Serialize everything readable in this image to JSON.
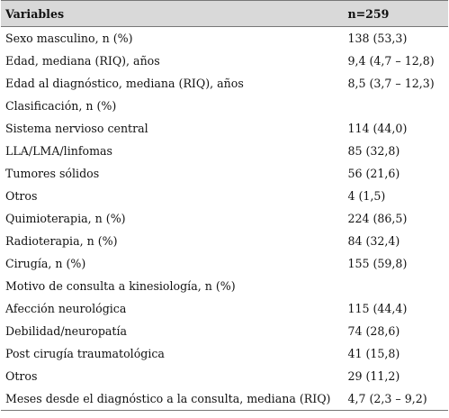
{
  "table": {
    "headers": {
      "variable": "Variables",
      "value": "n=259"
    },
    "rows": [
      {
        "label": "Sexo masculino, n (%)",
        "value": "138 (53,3)"
      },
      {
        "label": "Edad, mediana (RIQ), años",
        "value": "9,4 (4,7 – 12,8)"
      },
      {
        "label": "Edad al diagnóstico, mediana (RIQ), años",
        "value": "8,5 (3,7 – 12,3)"
      },
      {
        "label": "Clasificación, n (%)",
        "value": ""
      },
      {
        "label": "Sistema nervioso central",
        "value": "114 (44,0)"
      },
      {
        "label": "LLA/LMA/linfomas",
        "value": "85 (32,8)"
      },
      {
        "label": "Tumores sólidos",
        "value": "56 (21,6)"
      },
      {
        "label": "Otros",
        "value": "4 (1,5)"
      },
      {
        "label": "Quimioterapia, n (%)",
        "value": "224 (86,5)"
      },
      {
        "label": "Radioterapia, n (%)",
        "value": "84 (32,4)"
      },
      {
        "label": "Cirugía, n (%)",
        "value": "155 (59,8)"
      },
      {
        "label": "Motivo de consulta a kinesiología, n (%)",
        "value": ""
      },
      {
        "label": "Afección neurológica",
        "value": "115 (44,4)"
      },
      {
        "label": "Debilidad/neuropatía",
        "value": "74 (28,6)"
      },
      {
        "label": "Post cirugía traumatológica",
        "value": "41 (15,8)"
      },
      {
        "label": "Otros",
        "value": "29 (11,2)"
      },
      {
        "label": "Meses desde el diagnóstico a la consulta, mediana (RIQ)",
        "value": "4,7 (2,3 – 9,2)"
      }
    ]
  }
}
